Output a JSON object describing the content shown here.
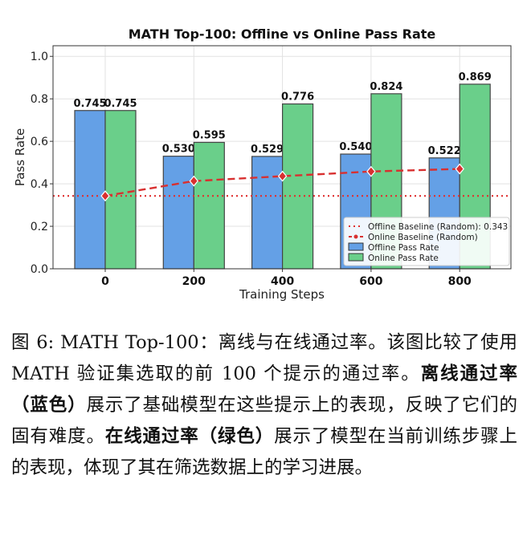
{
  "chart_data": {
    "type": "bar",
    "title": "MATH Top-100: Offline vs Online Pass Rate",
    "xlabel": "Training Steps",
    "ylabel": "Pass Rate",
    "ylim": [
      0,
      1.05
    ],
    "yticks": [
      "0.0",
      "0.2",
      "0.4",
      "0.6",
      "0.8",
      "1.0"
    ],
    "categories": [
      "0",
      "200",
      "400",
      "600",
      "800"
    ],
    "series": [
      {
        "name": "Offline Pass Rate",
        "values": [
          0.745,
          0.53,
          0.529,
          0.54,
          0.522
        ],
        "labels": [
          "0.745",
          "0.530",
          "0.529",
          "0.540",
          "0.522"
        ],
        "color": "#64a0e6"
      },
      {
        "name": "Online Pass Rate",
        "values": [
          0.745,
          0.595,
          0.776,
          0.824,
          0.869
        ],
        "labels": [
          "0.745",
          "0.595",
          "0.776",
          "0.824",
          "0.869"
        ],
        "color": "#6acf8a"
      }
    ],
    "lines": [
      {
        "name": "Offline Baseline (Random): 0.343",
        "value": 0.343,
        "style": "dotted",
        "color": "#e03030"
      },
      {
        "name": "Online Baseline (Random)",
        "values": [
          0.343,
          0.413,
          0.436,
          0.458,
          0.47
        ],
        "style": "dashed",
        "color": "#d83030"
      }
    ],
    "grid": true,
    "legend": "bottom-right"
  },
  "caption": {
    "p1": "图 6: MATH Top-100：离线与在线通过率。该图比较了使用 MATH 验证集选取的前 100 个提示的通过率。",
    "b1": "离线通过率（蓝色）",
    "p2": "展示了基础模型在这些提示上的表现，反映了它们的固有难度。",
    "b2": "在线通过率（绿色）",
    "p3": "展示了模型在当前训练步骤上的表现，体现了其在筛选数据上的学习进展。"
  }
}
